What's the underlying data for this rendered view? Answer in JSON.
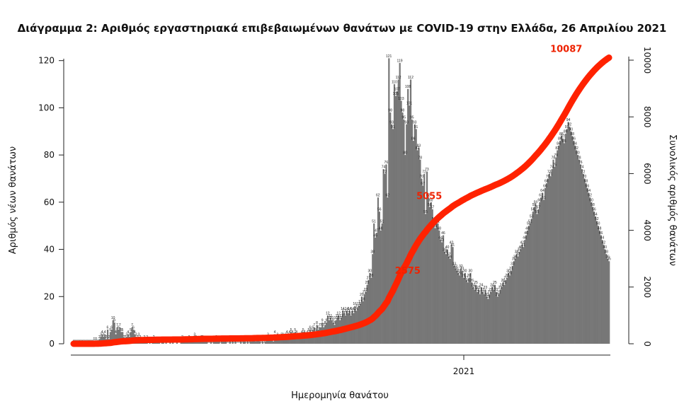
{
  "chart_data": {
    "type": "bar",
    "title": "Διάγραμμα 2: Αριθμός εργαστηριακά επιβεβαιωμένων θανάτων με COVID-19 στην Ελλάδα, 26 Απριλίου 2021",
    "xlabel": "Ημερομηνία θανάτου",
    "ylabel": "Αριθμός νέων θανάτων",
    "y2label": "Συνολικός αριθμός θανάτων",
    "x_tick_labels": [
      "2021"
    ],
    "ylim": [
      0,
      125
    ],
    "y_ticks": [
      0,
      20,
      40,
      60,
      80,
      100,
      120
    ],
    "y2lim": [
      0,
      10400
    ],
    "y2_ticks": [
      0,
      2000,
      4000,
      6000,
      8000,
      10000
    ],
    "colors": {
      "bars": "#777777",
      "cumulative_line": "#ff2200",
      "cumulative_labels": "#ee2200"
    },
    "series": [
      {
        "kind": "bar",
        "values": [
          0,
          0,
          0,
          0,
          0,
          0,
          0,
          0,
          0,
          0,
          0,
          0,
          0,
          0,
          0,
          1,
          1,
          1,
          0,
          2,
          3,
          4,
          3,
          4,
          2,
          6,
          2,
          5,
          6,
          10,
          9,
          4,
          7,
          6,
          7,
          5,
          5,
          2,
          2,
          3,
          4,
          3,
          5,
          7,
          6,
          4,
          3,
          2,
          3,
          2,
          1,
          1,
          2,
          1,
          2,
          0,
          1,
          0,
          1,
          2,
          1,
          1,
          1,
          1,
          0,
          1,
          1,
          0,
          1,
          0,
          0,
          1,
          0,
          1,
          0,
          0,
          1,
          0,
          0,
          1,
          2,
          1,
          1,
          1,
          1,
          2,
          1,
          1,
          1,
          3,
          2,
          1,
          1,
          1,
          2,
          2,
          1,
          1,
          1,
          0,
          0,
          1,
          0,
          1,
          1,
          2,
          1,
          1,
          0,
          1,
          1,
          1,
          1,
          0,
          0,
          1,
          0,
          1,
          0,
          1,
          0,
          0,
          0,
          2,
          0,
          1,
          1,
          0,
          1,
          0,
          1,
          1,
          2,
          2,
          1,
          2,
          2,
          1,
          0,
          1,
          0,
          1,
          2,
          3,
          2,
          2,
          2,
          1,
          4,
          2,
          3,
          2,
          2,
          3,
          3,
          2,
          3,
          4,
          3,
          4,
          5,
          4,
          3,
          5,
          4,
          2,
          3,
          3,
          4,
          5,
          4,
          3,
          4,
          5,
          6,
          5,
          6,
          7,
          5,
          8,
          6,
          7,
          7,
          9,
          7,
          8,
          9,
          12,
          10,
          11,
          10,
          9,
          8,
          10,
          11,
          12,
          10,
          11,
          14,
          13,
          12,
          14,
          13,
          14,
          12,
          14,
          13,
          16,
          14,
          15,
          16,
          17,
          20,
          18,
          21,
          22,
          25,
          27,
          30,
          28,
          38,
          51,
          45,
          47,
          62,
          56,
          48,
          51,
          74,
          72,
          76,
          62,
          121,
          98,
          93,
          91,
          110,
          105,
          107,
          112,
          119,
          103,
          98,
          95,
          80,
          93,
          108,
          101,
          112,
          95,
          86,
          93,
          91,
          82,
          83,
          78,
          70,
          67,
          72,
          55,
          73,
          62,
          58,
          60,
          57,
          52,
          49,
          52,
          51,
          48,
          44,
          43,
          46,
          39,
          38,
          40,
          37,
          36,
          42,
          41,
          33,
          32,
          31,
          30,
          29,
          32,
          31,
          28,
          30,
          27,
          26,
          28,
          30,
          26,
          24,
          23,
          25,
          22,
          23,
          21,
          24,
          22,
          21,
          23,
          20,
          19,
          21,
          22,
          24,
          23,
          25,
          22,
          20,
          21,
          23,
          24,
          26,
          25,
          27,
          28,
          30,
          29,
          31,
          33,
          35,
          36,
          38,
          37,
          39,
          40,
          42,
          41,
          44,
          46,
          48,
          50,
          51,
          53,
          56,
          58,
          59,
          55,
          57,
          60,
          62,
          64,
          61,
          66,
          68,
          70,
          72,
          71,
          74,
          78,
          75,
          79,
          82,
          84,
          86,
          88,
          87,
          85,
          89,
          91,
          94,
          92,
          90,
          88,
          86,
          84,
          82,
          80,
          78,
          76,
          74,
          72,
          70,
          68,
          66,
          64,
          62,
          60,
          58,
          56,
          54,
          52,
          50,
          48,
          46,
          44,
          42,
          40,
          38,
          36,
          35
        ],
        "value_labels": [
          "0",
          "0",
          "0",
          "0",
          "0",
          "0",
          "0",
          "0",
          "0",
          "0",
          "0",
          "0",
          "0",
          "0",
          "0",
          "1",
          "1",
          "1",
          "0",
          "2",
          "3",
          "4",
          "3",
          "4",
          "2",
          "6",
          "2",
          "5",
          "6",
          "10",
          "9",
          "4",
          "7",
          "6",
          "7",
          "5",
          "5",
          "2",
          "2",
          "3",
          "4",
          "3",
          "5",
          "7",
          "6",
          "4",
          "3",
          "2",
          "3",
          "2",
          "1",
          "1",
          "2",
          "1",
          "2",
          "0",
          "1",
          "0",
          "1",
          "2",
          "1",
          "1",
          "1",
          "1",
          "0",
          "1",
          "1",
          "0",
          "1",
          "0",
          "0",
          "1",
          "0",
          "1",
          "0",
          "0",
          "1",
          "0",
          "0",
          "1",
          "2",
          "1",
          "1",
          "1",
          "1",
          "2",
          "1",
          "1",
          "1",
          "3",
          "2",
          "1",
          "1",
          "1",
          "2",
          "2",
          "1",
          "1",
          "1",
          "0",
          "0",
          "1",
          "0",
          "1",
          "1",
          "2",
          "1",
          "1",
          "0",
          "1",
          "1",
          "1",
          "1",
          "0",
          "0",
          "1",
          "0",
          "1",
          "0",
          "1",
          "0",
          "0",
          "0",
          "2",
          "0",
          "1",
          "1",
          "0",
          "1",
          "0",
          "1",
          "1",
          "2",
          "2",
          "1",
          "2",
          "2",
          "1",
          "0",
          "1",
          "0",
          "1",
          "2",
          "3",
          "2",
          "2",
          "2",
          "1",
          "4",
          "2",
          "3",
          "2",
          "2",
          "3",
          "3",
          "2",
          "3",
          "4",
          "3",
          "4",
          "5",
          "4",
          "3",
          "5",
          "4",
          "2",
          "3",
          "3",
          "4",
          "5",
          "4",
          "3",
          "4",
          "5",
          "6",
          "5",
          "6",
          "7",
          "5",
          "8",
          "6",
          "7",
          "7",
          "9",
          "7",
          "8",
          "9",
          "12",
          "10",
          "11",
          "10",
          "9",
          "8",
          "10",
          "11",
          "12",
          "10",
          "11",
          "14",
          "13",
          "12",
          "14",
          "13",
          "14",
          "12",
          "14",
          "13",
          "16",
          "14",
          "15",
          "16",
          "17",
          "20",
          "18",
          "21",
          "22",
          "25",
          "27",
          "30",
          "28",
          "38",
          "51",
          "45",
          "47",
          "62",
          "56",
          "48",
          "51",
          "74",
          "72",
          "76",
          "62",
          "121",
          "98",
          "93",
          "91",
          "110",
          "105",
          "107",
          "112",
          "119",
          "103",
          "98",
          "95",
          "80",
          "93",
          "108",
          "101",
          "112",
          "95",
          "86",
          "93",
          "91",
          "82",
          "83",
          "78",
          "70",
          "67",
          "72",
          "55",
          "73",
          "62",
          "58",
          "60",
          "57",
          "52",
          "49",
          "52",
          "51",
          "48",
          "44",
          "43",
          "46",
          "39",
          "38",
          "40",
          "37",
          "36",
          "42",
          "41",
          "33",
          "32",
          "31",
          "30",
          "29",
          "32",
          "31",
          "28",
          "30",
          "27",
          "26",
          "28",
          "30",
          "26",
          "24",
          "23",
          "25",
          "22",
          "23",
          "21",
          "24",
          "22",
          "21",
          "23",
          "20",
          "19",
          "21",
          "22",
          "24",
          "23",
          "25",
          "22",
          "20",
          "21",
          "23",
          "24",
          "26",
          "25",
          "27",
          "28",
          "30",
          "29",
          "31",
          "33",
          "35",
          "36",
          "38",
          "37",
          "39",
          "40",
          "42",
          "41",
          "44",
          "46",
          "48",
          "50",
          "51",
          "53",
          "56",
          "58",
          "59",
          "55",
          "57",
          "60",
          "62",
          "64",
          "61",
          "66",
          "68",
          "70",
          "72",
          "71",
          "74",
          "78",
          "75",
          "79",
          "82",
          "84",
          "86",
          "88",
          "87",
          "85",
          "89",
          "91",
          "94",
          "92",
          "90",
          "88",
          "86",
          "84",
          "82",
          "80",
          "78",
          "76",
          "74",
          "72",
          "70",
          "68",
          "66",
          "64",
          "62",
          "60",
          "58",
          "56",
          "54",
          "52",
          "50",
          "48",
          "46",
          "44",
          "42",
          "40",
          "38",
          "36",
          "35"
        ]
      },
      {
        "kind": "cumulative_line",
        "axis": "y2",
        "annotations": [
          {
            "label": "2575",
            "day_index": 248,
            "value": 2575
          },
          {
            "label": "5055",
            "day_index": 268,
            "value": 5055
          },
          {
            "label": "10087",
            "day_index": 374,
            "value": 10087
          }
        ]
      }
    ]
  }
}
